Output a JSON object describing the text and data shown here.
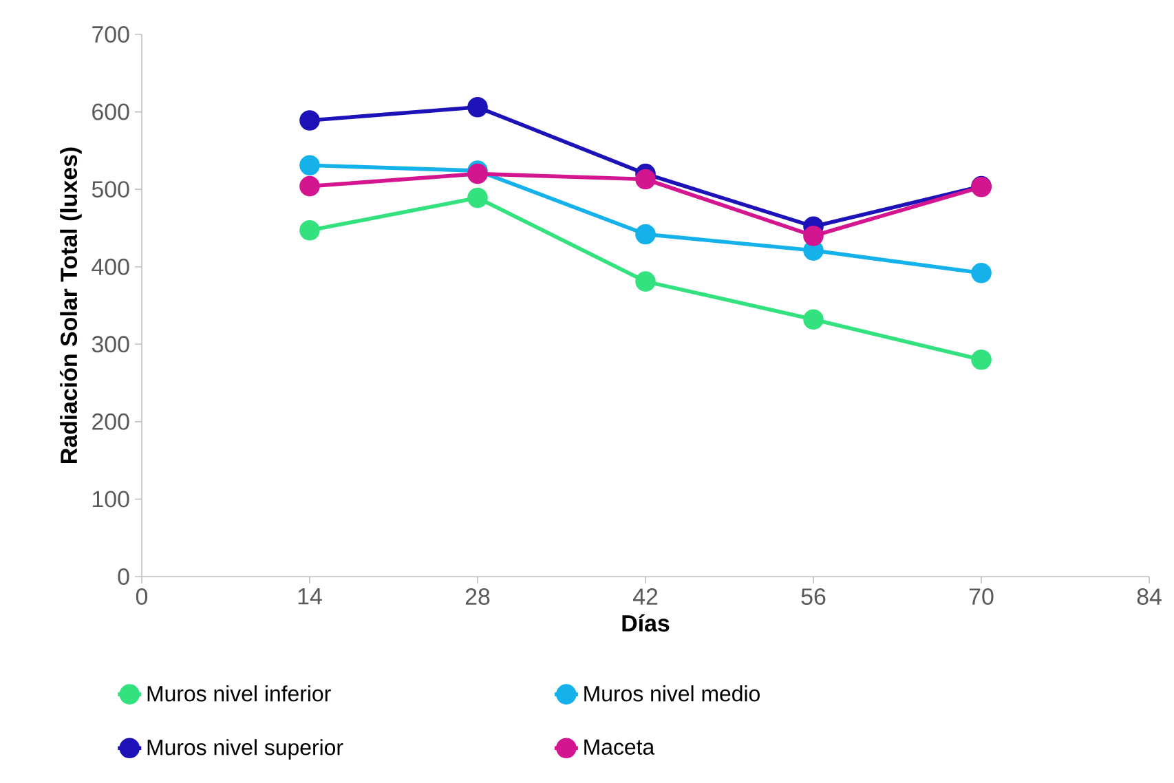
{
  "chart_data": {
    "type": "line",
    "xlabel": "Días",
    "ylabel": "Radiación Solar Total (luxes)",
    "x": [
      14,
      28,
      42,
      56,
      70
    ],
    "series": [
      {
        "name": "Muros nivel inferior",
        "color": "#33e27e",
        "values": [
          447,
          489,
          381,
          332,
          280
        ]
      },
      {
        "name": "Muros nivel medio",
        "color": "#14b1ea",
        "values": [
          531,
          524,
          442,
          421,
          392
        ]
      },
      {
        "name": "Muros nivel superior",
        "color": "#1d12b8",
        "values": [
          589,
          606,
          520,
          452,
          504
        ]
      },
      {
        "name": "Maceta",
        "color": "#d3158f",
        "values": [
          504,
          520,
          513,
          440,
          503
        ]
      }
    ],
    "xlim": [
      0,
      84
    ],
    "xticks": [
      0,
      14,
      28,
      42,
      56,
      70,
      84
    ],
    "ylim": [
      0,
      700
    ],
    "yticks": [
      0,
      100,
      200,
      300,
      400,
      500,
      600,
      700
    ],
    "grid": false,
    "legend": "bottom",
    "marker": "circle",
    "line_style": "solid"
  }
}
